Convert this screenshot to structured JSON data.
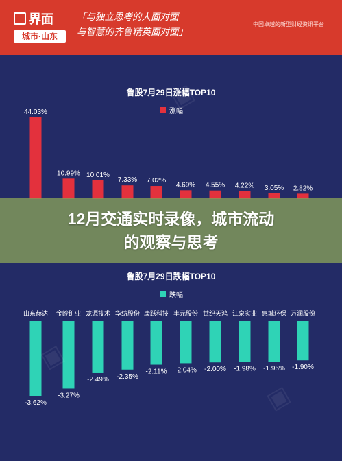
{
  "header": {
    "logo": "界面",
    "logo_sub": "城市·山东",
    "slogan_line1": "「与独立思考的人面对面",
    "slogan_line2": "与智慧的齐鲁精英面对面」",
    "tagline": "中国卓越的新型财经资讯平台"
  },
  "banner": {
    "line1": "12月交通实时录像，城市流动",
    "line2": "的观察与思考"
  },
  "colors": {
    "header_red": "#d73a2c",
    "chart_bg": "#232b66",
    "gain_bar": "#e3313d",
    "loss_bar": "#2fd3b6"
  },
  "chart_data": [
    {
      "type": "bar",
      "title": "鲁股7月29日涨幅TOP10",
      "legend": "涨幅",
      "values": [
        44.03,
        10.99,
        10.01,
        7.33,
        7.02,
        4.69,
        4.55,
        4.22,
        3.05,
        2.82
      ],
      "labels": [
        "44.03%",
        "10.99%",
        "10.01%",
        "7.33%",
        "7.02%",
        "4.69%",
        "4.55%",
        "4.22%",
        "3.05%",
        "2.82%"
      ],
      "ylim": [
        0,
        44.03
      ]
    },
    {
      "type": "bar",
      "title": "鲁股7月29日跌幅TOP10",
      "legend": "跌幅",
      "categories": [
        "山东赫达",
        "金岭矿业",
        "龙源技术",
        "华纺股份",
        "康跃科技",
        "丰元股份",
        "世纪天鸿",
        "江泉实业",
        "惠城环保",
        "万润股份"
      ],
      "values": [
        -3.62,
        -3.27,
        -2.49,
        -2.35,
        -2.11,
        -2.04,
        -2.0,
        -1.98,
        -1.96,
        -1.9
      ],
      "labels": [
        "-3.62%",
        "-3.27%",
        "-2.49%",
        "-2.35%",
        "-2.11%",
        "-2.04%",
        "-2.00%",
        "-1.98%",
        "-1.96%",
        "-1.90%"
      ],
      "ylim": [
        -3.62,
        0
      ]
    }
  ]
}
